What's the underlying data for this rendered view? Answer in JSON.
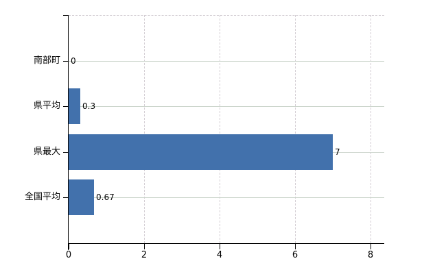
{
  "chart_data": {
    "type": "bar",
    "orientation": "horizontal",
    "title": "",
    "categories": [
      "南部町",
      "県平均",
      "県最大",
      "全国平均"
    ],
    "values": [
      0,
      0.3,
      7,
      0.67
    ],
    "value_labels": [
      "0",
      "0.3",
      "7",
      "0.67"
    ],
    "x_ticks": [
      0,
      2,
      4,
      6,
      8
    ],
    "x_tick_labels": [
      "0",
      "2",
      "4",
      "6",
      "8"
    ],
    "xlim": [
      0,
      8.4
    ],
    "xlabel": "",
    "ylabel": "",
    "legend_position": "none",
    "grid": {
      "horizontal": "solid",
      "vertical": "dashed",
      "top_border": "dashed",
      "horizontal_color": "#ccd5cc",
      "vertical_color": "#d2ccd2"
    },
    "bar_color": "#4271ac",
    "axis_color": "#000000",
    "text_color": "#000000",
    "background": "#ffffff"
  }
}
